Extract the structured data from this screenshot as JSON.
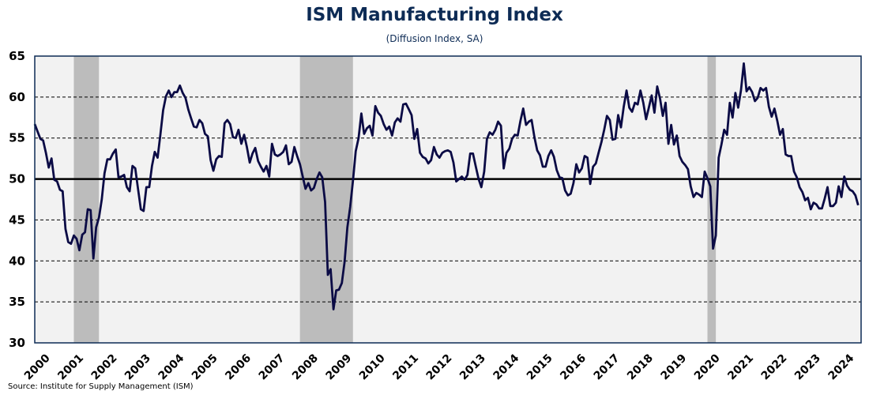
{
  "chart_data": {
    "type": "line",
    "title": "ISM Manufacturing Index",
    "subtitle": "(Diffusion Index, SA)",
    "source": "Source: Institute for Supply Management (ISM)",
    "xlabel": "",
    "ylabel": "",
    "ylim": [
      30,
      65
    ],
    "yticks": [
      "30",
      "35",
      "40",
      "45",
      "50",
      "55",
      "60",
      "65"
    ],
    "xticks": [
      "2000",
      "2001",
      "2002",
      "2003",
      "2004",
      "2005",
      "2006",
      "2007",
      "2008",
      "2009",
      "2010",
      "2011",
      "2012",
      "2013",
      "2014",
      "2015",
      "2016",
      "2017",
      "2018",
      "2019",
      "2020",
      "2021",
      "2022",
      "2023",
      "2024"
    ],
    "reference_line": 50,
    "grid": "horizontal dashed",
    "frequency": "monthly",
    "start": "2000-01",
    "recessions": [
      [
        "2001-03",
        "2001-11"
      ],
      [
        "2007-12",
        "2009-06"
      ],
      [
        "2020-02",
        "2020-04"
      ]
    ],
    "colors": {
      "line": "#0b0b45",
      "recession": "#bcbcbc",
      "plot_bg": "#f2f2f2",
      "title": "#0d2b55"
    },
    "series": [
      {
        "name": "ISM Manufacturing Index",
        "values": [
          56.7,
          55.8,
          54.9,
          54.7,
          53.2,
          51.4,
          52.5,
          49.9,
          49.7,
          48.7,
          48.5,
          43.9,
          42.3,
          42.1,
          43.1,
          42.7,
          41.3,
          43.2,
          43.5,
          46.3,
          46.2,
          40.3,
          44.1,
          45.3,
          47.5,
          50.7,
          52.4,
          52.4,
          53.1,
          53.6,
          50.2,
          50.3,
          50.5,
          49.0,
          48.5,
          51.6,
          51.3,
          48.8,
          46.3,
          46.1,
          49.0,
          49.0,
          51.6,
          53.3,
          52.6,
          55.4,
          58.4,
          60.1,
          60.8,
          60.0,
          60.6,
          60.6,
          61.4,
          60.5,
          59.9,
          58.5,
          57.4,
          56.4,
          56.3,
          57.2,
          56.8,
          55.5,
          55.2,
          52.3,
          51.0,
          52.4,
          52.8,
          52.7,
          56.8,
          57.2,
          56.7,
          55.1,
          55.0,
          56.0,
          54.3,
          55.4,
          53.9,
          52.0,
          53.1,
          53.8,
          52.2,
          51.5,
          50.9,
          51.6,
          50.3,
          54.3,
          53.0,
          52.8,
          53.0,
          53.3,
          54.1,
          51.8,
          52.1,
          53.9,
          52.8,
          51.8,
          50.3,
          48.8,
          49.5,
          48.6,
          48.9,
          50.0,
          50.8,
          50.2,
          47.2,
          38.3,
          39.0,
          34.1,
          36.4,
          36.5,
          37.3,
          39.9,
          44.1,
          46.6,
          49.8,
          53.4,
          55.0,
          58.0,
          55.5,
          56.2,
          56.5,
          55.3,
          58.9,
          58.1,
          57.7,
          56.7,
          56.0,
          56.4,
          55.3,
          56.9,
          57.4,
          57.0,
          59.1,
          59.2,
          58.5,
          57.8,
          54.9,
          56.1,
          53.2,
          52.7,
          52.5,
          51.9,
          52.3,
          53.9,
          53.0,
          52.6,
          53.2,
          53.4,
          53.5,
          53.3,
          52.0,
          49.7,
          50.0,
          50.3,
          49.9,
          50.5,
          53.1,
          53.1,
          51.5,
          50.0,
          49.0,
          50.9,
          54.9,
          55.7,
          55.4,
          56.0,
          57.0,
          56.5,
          51.3,
          53.2,
          53.7,
          54.9,
          55.4,
          55.3,
          57.1,
          58.6,
          56.6,
          57.0,
          57.2,
          55.1,
          53.5,
          52.9,
          51.5,
          51.5,
          52.8,
          53.5,
          52.7,
          51.1,
          50.2,
          50.1,
          48.6,
          48.0,
          48.2,
          49.5,
          51.8,
          50.8,
          51.3,
          52.8,
          52.6,
          49.4,
          51.5,
          51.9,
          53.2,
          54.5,
          56.0,
          57.7,
          57.2,
          54.8,
          54.9,
          57.8,
          56.3,
          58.8,
          60.8,
          58.7,
          58.2,
          59.3,
          59.1,
          60.8,
          59.3,
          57.3,
          58.7,
          60.2,
          58.1,
          61.3,
          59.8,
          57.7,
          59.3,
          54.3,
          56.6,
          54.2,
          55.3,
          52.8,
          52.1,
          51.7,
          51.2,
          49.1,
          47.8,
          48.3,
          48.1,
          47.8,
          50.9,
          50.1,
          49.1,
          41.5,
          43.1,
          52.6,
          54.2,
          56.0,
          55.4,
          59.3,
          57.5,
          60.5,
          58.7,
          60.8,
          64.1,
          60.7,
          61.2,
          60.6,
          59.5,
          59.9,
          61.1,
          60.8,
          61.1,
          58.8,
          57.6,
          58.6,
          57.1,
          55.4,
          56.1,
          53.0,
          52.8,
          52.8,
          50.9,
          50.2,
          49.0,
          48.4,
          47.4,
          47.7,
          46.3,
          47.1,
          46.9,
          46.4,
          46.4,
          47.6,
          49.0,
          46.7,
          46.7,
          47.1,
          49.1,
          47.8,
          50.3,
          49.2,
          48.7,
          48.5,
          48.0,
          46.8
        ]
      }
    ]
  }
}
